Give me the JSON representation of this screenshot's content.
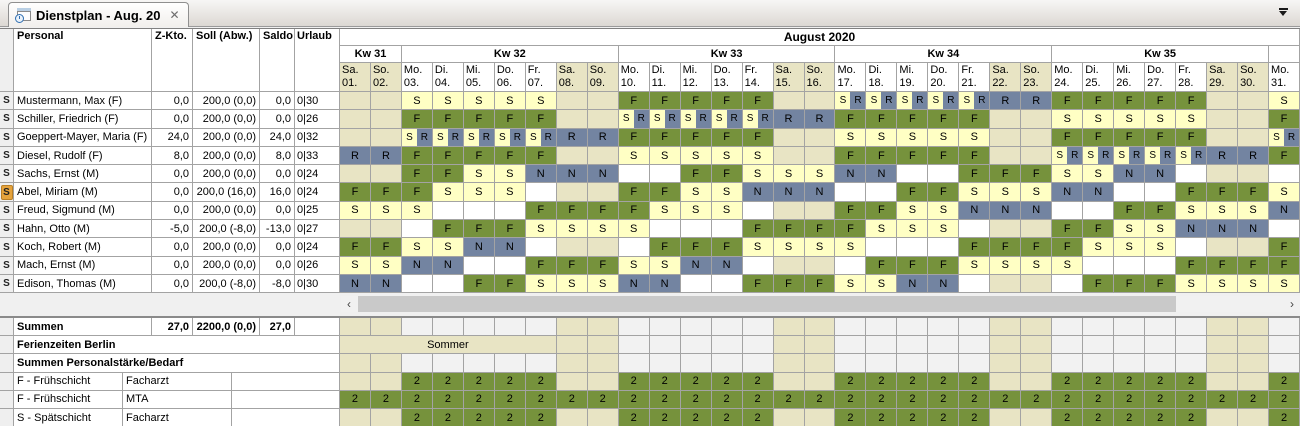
{
  "tab": {
    "title": "Dienstplan - Aug. 20",
    "close_glyph": "✕"
  },
  "window": {
    "tab_list_icon": "tab-list-dropdown"
  },
  "columns": {
    "personal": "Personal",
    "zkto": "Z-Kto.",
    "soll": "Soll (Abw.)",
    "saldo": "Saldo",
    "urlaub": "Urlaub"
  },
  "calendar": {
    "month_title": "August 2020",
    "weeks": [
      {
        "label": "Kw 31",
        "span": 2
      },
      {
        "label": "Kw 32",
        "span": 7
      },
      {
        "label": "Kw 33",
        "span": 7
      },
      {
        "label": "Kw 34",
        "span": 7
      },
      {
        "label": "Kw 35",
        "span": 7
      },
      {
        "label": "",
        "span": 1
      }
    ],
    "days": [
      {
        "dow": "Sa.",
        "date": "01."
      },
      {
        "dow": "So.",
        "date": "02."
      },
      {
        "dow": "Mo.",
        "date": "03."
      },
      {
        "dow": "Di.",
        "date": "04."
      },
      {
        "dow": "Mi.",
        "date": "05."
      },
      {
        "dow": "Do.",
        "date": "06."
      },
      {
        "dow": "Fr.",
        "date": "07."
      },
      {
        "dow": "Sa.",
        "date": "08."
      },
      {
        "dow": "So.",
        "date": "09."
      },
      {
        "dow": "Mo.",
        "date": "10."
      },
      {
        "dow": "Di.",
        "date": "11."
      },
      {
        "dow": "Mi.",
        "date": "12."
      },
      {
        "dow": "Do.",
        "date": "13."
      },
      {
        "dow": "Fr.",
        "date": "14."
      },
      {
        "dow": "Sa.",
        "date": "15."
      },
      {
        "dow": "So.",
        "date": "16."
      },
      {
        "dow": "Mo.",
        "date": "17."
      },
      {
        "dow": "Di.",
        "date": "18."
      },
      {
        "dow": "Mi.",
        "date": "19."
      },
      {
        "dow": "Do.",
        "date": "20."
      },
      {
        "dow": "Fr.",
        "date": "21."
      },
      {
        "dow": "Sa.",
        "date": "22."
      },
      {
        "dow": "So.",
        "date": "23."
      },
      {
        "dow": "Mo.",
        "date": "24."
      },
      {
        "dow": "Di.",
        "date": "25."
      },
      {
        "dow": "Mi.",
        "date": "26."
      },
      {
        "dow": "Do.",
        "date": "27."
      },
      {
        "dow": "Fr.",
        "date": "28."
      },
      {
        "dow": "Sa.",
        "date": "29."
      },
      {
        "dow": "So.",
        "date": "30."
      },
      {
        "dow": "Mo.",
        "date": "31."
      }
    ]
  },
  "people": [
    {
      "marker": "S",
      "name": "Mustermann, Max (F)",
      "zkto": "0,0",
      "soll": "200,0 (0,0)",
      "saldo": "0,0",
      "urlaub": "0|30",
      "selected": false,
      "cells": [
        "",
        "",
        "S",
        "S",
        "S",
        "S",
        "S",
        "",
        "",
        "F",
        "F",
        "F",
        "F",
        "F",
        "",
        "",
        "S|R",
        "S|R",
        "S|R",
        "S|R",
        "S|R",
        "R",
        "R",
        "F",
        "F",
        "F",
        "F",
        "F",
        "",
        "",
        "S"
      ]
    },
    {
      "marker": "S",
      "name": "Schiller, Friedrich (F)",
      "zkto": "0,0",
      "soll": "200,0 (0,0)",
      "saldo": "0,0",
      "urlaub": "0|26",
      "selected": false,
      "cells": [
        "",
        "",
        "F",
        "F",
        "F",
        "F",
        "F",
        "",
        "",
        "S|R",
        "S|R",
        "S|R",
        "S|R",
        "S|R",
        "R",
        "R",
        "F",
        "F",
        "F",
        "F",
        "F",
        "",
        "",
        "S",
        "S",
        "S",
        "S",
        "S",
        "",
        "",
        "F"
      ]
    },
    {
      "marker": "S",
      "name": "Goeppert-Mayer, Maria (F)",
      "zkto": "24,0",
      "soll": "200,0 (0,0)",
      "saldo": "24,0",
      "urlaub": "0|32",
      "selected": false,
      "cells": [
        "",
        "",
        "S|R",
        "S|R",
        "S|R",
        "S|R",
        "S|R",
        "R",
        "R",
        "F",
        "F",
        "F",
        "F",
        "F",
        "",
        "",
        "S",
        "S",
        "S",
        "S",
        "S",
        "",
        "",
        "F",
        "F",
        "F",
        "F",
        "F",
        "",
        "",
        "S|R"
      ]
    },
    {
      "marker": "S",
      "name": "Diesel, Rudolf (F)",
      "zkto": "8,0",
      "soll": "200,0 (0,0)",
      "saldo": "8,0",
      "urlaub": "0|33",
      "selected": false,
      "cells": [
        "R",
        "R",
        "F",
        "F",
        "F",
        "F",
        "F",
        "",
        "",
        "S",
        "S",
        "S",
        "S",
        "S",
        "",
        "",
        "F",
        "F",
        "F",
        "F",
        "F",
        "",
        "",
        "S|R",
        "S|R",
        "S|R",
        "S|R",
        "S|R",
        "R",
        "R",
        "F"
      ]
    },
    {
      "marker": "S",
      "name": "Sachs, Ernst (M)",
      "zkto": "0,0",
      "soll": "200,0 (0,0)",
      "saldo": "0,0",
      "urlaub": "0|24",
      "selected": false,
      "cells": [
        "",
        "",
        "F",
        "F",
        "S",
        "S",
        "N",
        "N",
        "N",
        "",
        "",
        "F",
        "F",
        "S",
        "S",
        "S",
        "N",
        "N",
        "",
        "",
        "F",
        "F",
        "F",
        "S",
        "S",
        "N",
        "N",
        "",
        "",
        "",
        ""
      ]
    },
    {
      "marker": "S",
      "name": "Abel, Miriam (M)",
      "zkto": "0,0",
      "soll": "200,0 (16,0)",
      "saldo": "16,0",
      "urlaub": "0|24",
      "selected": true,
      "cells": [
        "F",
        "F",
        "F",
        "S",
        "S",
        "S",
        "",
        "",
        "",
        "F",
        "F",
        "S",
        "S",
        "N",
        "N",
        "N",
        "",
        "",
        "F",
        "F",
        "S",
        "S",
        "S",
        "N",
        "N",
        "",
        "",
        "F",
        "F",
        "F",
        "S"
      ]
    },
    {
      "marker": "S",
      "name": "Freud, Sigmund (M)",
      "zkto": "0,0",
      "soll": "200,0 (0,0)",
      "saldo": "0,0",
      "urlaub": "0|25",
      "selected": false,
      "cells": [
        "S",
        "S",
        "S",
        "",
        "",
        "",
        "F",
        "F",
        "F",
        "F",
        "S",
        "S",
        "S",
        "",
        "",
        "",
        "F",
        "F",
        "S",
        "S",
        "N",
        "N",
        "N",
        "",
        "",
        "F",
        "F",
        "S",
        "S",
        "S",
        "N"
      ]
    },
    {
      "marker": "S",
      "name": "Hahn, Otto (M)",
      "zkto": "-5,0",
      "soll": "200,0 (-8,0)",
      "saldo": "-13,0",
      "urlaub": "0|27",
      "selected": false,
      "cells": [
        "",
        "",
        "",
        "F",
        "F",
        "F",
        "S",
        "S",
        "S",
        "S",
        "",
        "",
        "",
        "F",
        "F",
        "F",
        "F",
        "S",
        "S",
        "S",
        "",
        "",
        "",
        "F",
        "F",
        "S",
        "S",
        "N",
        "N",
        "N",
        ""
      ]
    },
    {
      "marker": "S",
      "name": "Koch, Robert (M)",
      "zkto": "0,0",
      "soll": "200,0 (0,0)",
      "saldo": "0,0",
      "urlaub": "0|24",
      "selected": false,
      "cells": [
        "F",
        "F",
        "S",
        "S",
        "N",
        "N",
        "",
        "",
        "",
        "",
        "F",
        "F",
        "F",
        "S",
        "S",
        "S",
        "S",
        "",
        "",
        "",
        "F",
        "F",
        "F",
        "F",
        "S",
        "S",
        "S",
        "",
        "",
        "",
        "F"
      ]
    },
    {
      "marker": "S",
      "name": "Mach, Ernst (M)",
      "zkto": "0,0",
      "soll": "200,0 (0,0)",
      "saldo": "0,0",
      "urlaub": "0|26",
      "selected": false,
      "cells": [
        "S",
        "S",
        "N",
        "N",
        "",
        "",
        "F",
        "F",
        "F",
        "S",
        "S",
        "N",
        "N",
        "",
        "",
        "",
        "",
        "F",
        "F",
        "F",
        "S",
        "S",
        "S",
        "S",
        "",
        "",
        "",
        "F",
        "F",
        "F",
        "F"
      ]
    },
    {
      "marker": "S",
      "name": "Edison, Thomas (M)",
      "zkto": "0,0",
      "soll": "200,0 (-8,0)",
      "saldo": "-8,0",
      "urlaub": "0|30",
      "selected": false,
      "cells": [
        "N",
        "N",
        "",
        "",
        "F",
        "F",
        "S",
        "S",
        "S",
        "N",
        "N",
        "",
        "",
        "F",
        "F",
        "F",
        "S",
        "S",
        "N",
        "N",
        "",
        "",
        "",
        "",
        "F",
        "F",
        "F",
        "S",
        "S",
        "S",
        "S"
      ]
    }
  ],
  "scrollbar": {
    "left_arrow": "‹",
    "right_arrow": "›"
  },
  "summary": {
    "summen": {
      "label": "Summen",
      "zkto": "27,0",
      "soll": "2200,0 (0,0)",
      "saldo": "27,0",
      "urlaub": ""
    },
    "ferien": {
      "label": "Ferienzeiten Berlin",
      "band_label": "Sommer",
      "band_span": 7,
      "beige_days": [
        8,
        9
      ]
    },
    "staffing_header": {
      "label": "Summen Personalstärke/Bedarf"
    },
    "staffing": [
      {
        "shift": "F - Frühschicht",
        "role": "Facharzt",
        "cells": [
          "",
          "",
          "2",
          "2",
          "2",
          "2",
          "2",
          "",
          "",
          "2",
          "2",
          "2",
          "2",
          "2",
          "",
          "",
          "2",
          "2",
          "2",
          "2",
          "2",
          "",
          "",
          "2",
          "2",
          "2",
          "2",
          "2",
          "",
          "",
          "2"
        ]
      },
      {
        "shift": "F - Frühschicht",
        "role": "MTA",
        "cells": [
          "2",
          "2",
          "2",
          "2",
          "2",
          "2",
          "2",
          "2",
          "2",
          "2",
          "2",
          "2",
          "2",
          "2",
          "2",
          "2",
          "2",
          "2",
          "2",
          "2",
          "2",
          "2",
          "2",
          "2",
          "2",
          "2",
          "2",
          "2",
          "2",
          "2",
          "2"
        ]
      },
      {
        "shift": "S - Spätschicht",
        "role": "Facharzt",
        "cells": [
          "",
          "",
          "2",
          "2",
          "2",
          "2",
          "2",
          "",
          "",
          "2",
          "2",
          "2",
          "2",
          "2",
          "",
          "",
          "2",
          "2",
          "2",
          "2",
          "2",
          "",
          "",
          "2",
          "2",
          "2",
          "2",
          "2",
          "",
          "",
          "2"
        ]
      }
    ]
  },
  "colors": {
    "shift_f_green": "#76923c",
    "shift_s_yellow": "#ffffc4",
    "shift_n_r_slate": "#7384a1",
    "weekend_beige": "#e8e4c4",
    "selected_marker_orange": "#e5a33c",
    "staffing_green": "#76923c"
  }
}
